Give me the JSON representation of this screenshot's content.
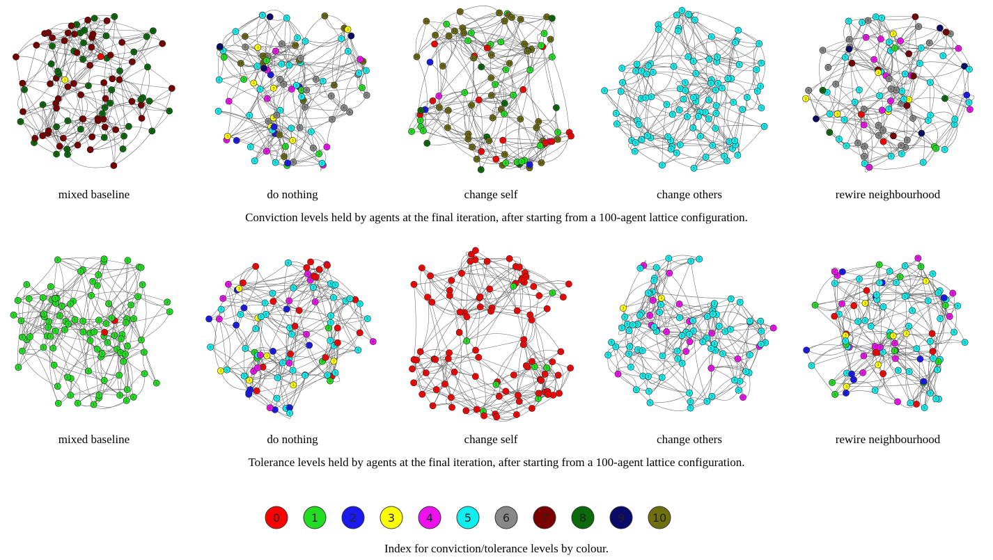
{
  "levels": [
    {
      "level": "0",
      "color": "#ff0000"
    },
    {
      "level": "1",
      "color": "#22dd22"
    },
    {
      "level": "2",
      "color": "#1a1aee"
    },
    {
      "level": "3",
      "color": "#ffff00"
    },
    {
      "level": "4",
      "color": "#ee11ee"
    },
    {
      "level": "5",
      "color": "#11eeee"
    },
    {
      "level": "6",
      "color": "#888888"
    },
    {
      "level": "7",
      "color": "#7a0000"
    },
    {
      "level": "8",
      "color": "#0b6b0b"
    },
    {
      "level": "9",
      "color": "#0a0a6a"
    },
    {
      "level": "10",
      "color": "#6f6f0f"
    }
  ],
  "rows": [
    {
      "caption": "Conviction levels held by agents at the final iteration, after starting from a 100-agent lattice configuration.",
      "panels": [
        {
          "label": "mixed baseline",
          "composition": {
            "7": 55,
            "8": 43,
            "0": 1,
            "3": 1
          }
        },
        {
          "label": "do nothing",
          "composition": {
            "5": 30,
            "6": 20,
            "10": 14,
            "4": 10,
            "3": 8,
            "1": 8,
            "2": 6,
            "9": 4
          }
        },
        {
          "label": "change self",
          "composition": {
            "10": 45,
            "1": 25,
            "0": 15,
            "8": 10,
            "2": 3,
            "4": 2
          }
        },
        {
          "label": "change others",
          "composition": {
            "5": 100
          }
        },
        {
          "label": "rewire neighbourhood",
          "composition": {
            "5": 35,
            "6": 25,
            "4": 12,
            "7": 8,
            "3": 6,
            "9": 5,
            "1": 3,
            "8": 3,
            "0": 2,
            "2": 1
          }
        }
      ]
    },
    {
      "caption": "Tolerance levels held by agents at the final iteration, after starting from a 100-agent lattice configuration.",
      "panels": [
        {
          "label": "mixed baseline",
          "composition": {
            "1": 98,
            "0": 2
          }
        },
        {
          "label": "do nothing",
          "composition": {
            "5": 40,
            "0": 20,
            "4": 15,
            "2": 12,
            "3": 8,
            "1": 5
          }
        },
        {
          "label": "change self",
          "composition": {
            "0": 92,
            "1": 8
          }
        },
        {
          "label": "change others",
          "composition": {
            "5": 80,
            "4": 18,
            "3": 2
          }
        },
        {
          "label": "rewire neighbourhood",
          "composition": {
            "5": 45,
            "4": 15,
            "1": 12,
            "0": 10,
            "3": 8,
            "2": 10
          }
        }
      ]
    }
  ],
  "legend_caption": "Index for conviction/tolerance levels by colour."
}
